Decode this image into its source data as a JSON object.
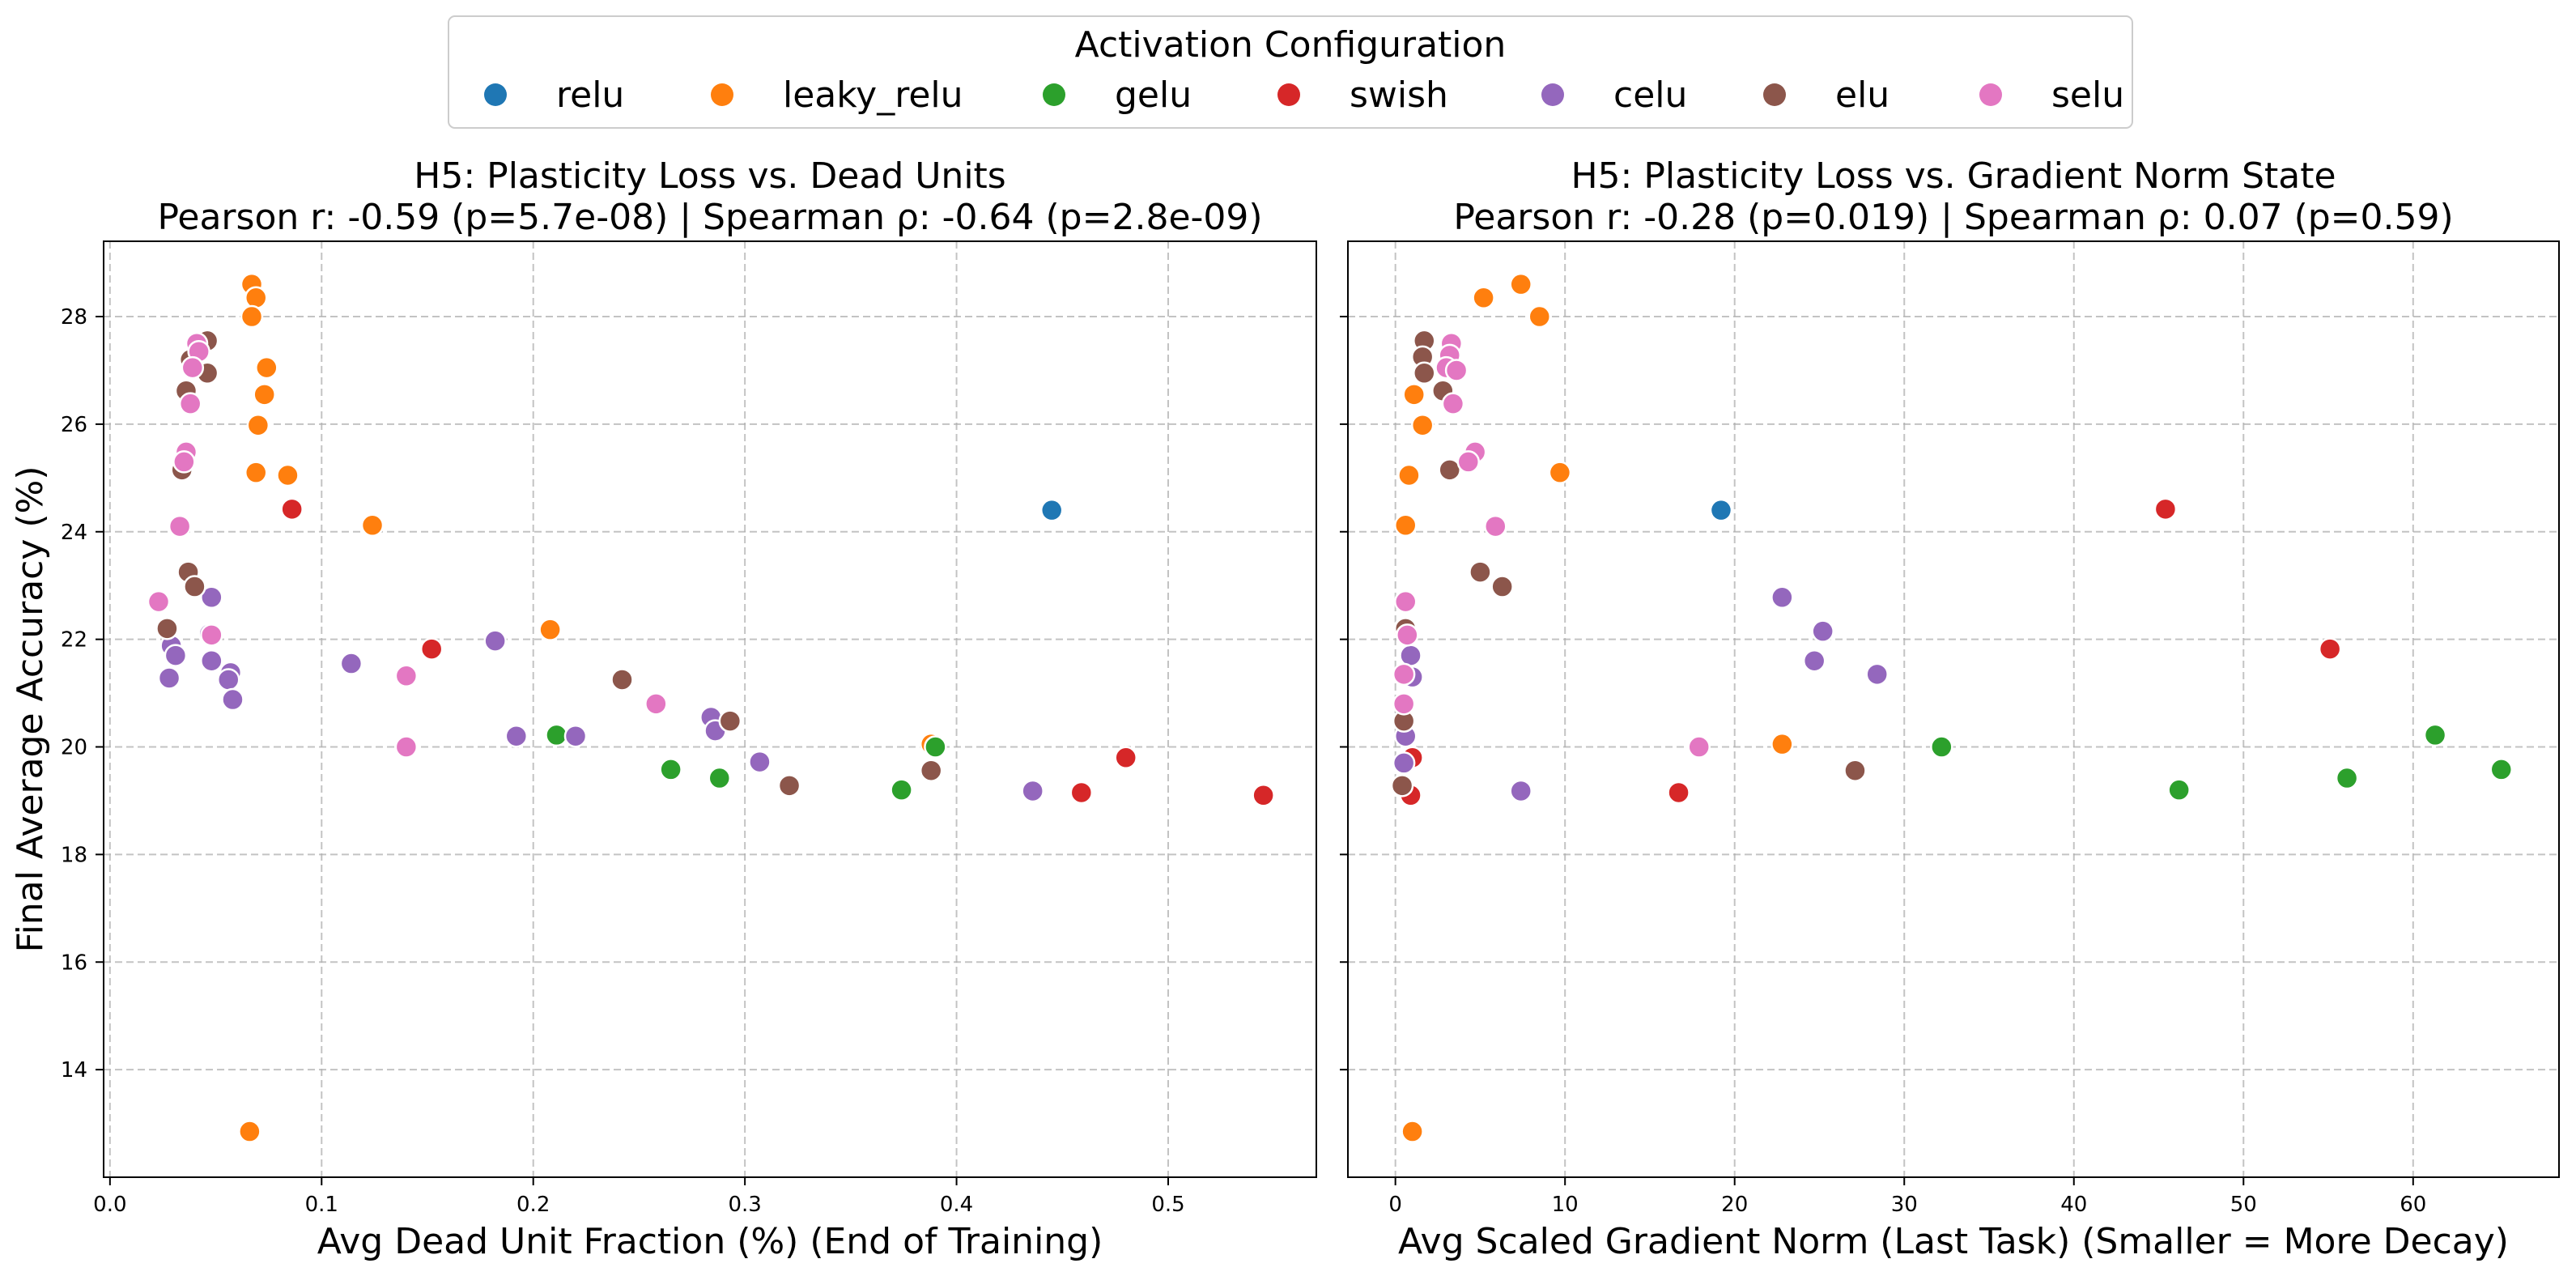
{
  "legend": {
    "title": "Activation Configuration",
    "entries": [
      {
        "name": "relu",
        "color": "#1f77b4"
      },
      {
        "name": "leaky_relu",
        "color": "#ff7f0e"
      },
      {
        "name": "gelu",
        "color": "#2ca02c"
      },
      {
        "name": "swish",
        "color": "#d62728"
      },
      {
        "name": "celu",
        "color": "#9467bd"
      },
      {
        "name": "elu",
        "color": "#8c564b"
      },
      {
        "name": "selu",
        "color": "#e377c2"
      }
    ]
  },
  "chart_data": [
    {
      "type": "scatter",
      "title": "H5: Plasticity Loss vs. Dead Units",
      "subtitle": "Pearson r: -0.59 (p=5.7e-08) | Spearman ρ: -0.64 (p=2.8e-09)",
      "xlabel": "Avg Dead Unit Fraction (%) (End of Training)",
      "ylabel": "Final Average Accuracy (%)",
      "xlim": [
        -0.003,
        0.57
      ],
      "ylim": [
        12.0,
        29.4
      ],
      "xticks": [
        0.0,
        0.1,
        0.2,
        0.3,
        0.4,
        0.5
      ],
      "xtick_labels": [
        "0.0",
        "0.1",
        "0.2",
        "0.3",
        "0.4",
        "0.5"
      ],
      "yticks": [
        14,
        16,
        18,
        20,
        22,
        24,
        26,
        28
      ],
      "ytick_labels": [
        "14",
        "16",
        "18",
        "20",
        "22",
        "24",
        "26",
        "28"
      ],
      "grid": true,
      "series": [
        {
          "name": "relu",
          "points": [
            [
              0.445,
              24.4
            ]
          ]
        },
        {
          "name": "leaky_relu",
          "points": [
            [
              0.067,
              28.6
            ],
            [
              0.069,
              28.35
            ],
            [
              0.067,
              28.0
            ],
            [
              0.074,
              27.05
            ],
            [
              0.073,
              26.55
            ],
            [
              0.07,
              25.98
            ],
            [
              0.069,
              25.1
            ],
            [
              0.084,
              25.05
            ],
            [
              0.124,
              24.12
            ],
            [
              0.208,
              22.18
            ],
            [
              0.388,
              20.05
            ],
            [
              0.066,
              12.85
            ]
          ]
        },
        {
          "name": "gelu",
          "points": [
            [
              0.211,
              20.22
            ],
            [
              0.265,
              19.58
            ],
            [
              0.288,
              19.42
            ],
            [
              0.374,
              19.2
            ],
            [
              0.39,
              20.0
            ]
          ]
        },
        {
          "name": "swish",
          "points": [
            [
              0.086,
              24.42
            ],
            [
              0.152,
              21.82
            ],
            [
              0.459,
              19.15
            ],
            [
              0.48,
              19.8
            ],
            [
              0.545,
              19.1
            ]
          ]
        },
        {
          "name": "celu",
          "points": [
            [
              0.048,
              22.78
            ],
            [
              0.047,
              22.1
            ],
            [
              0.048,
              21.6
            ],
            [
              0.029,
              21.88
            ],
            [
              0.031,
              21.7
            ],
            [
              0.028,
              21.28
            ],
            [
              0.057,
              21.38
            ],
            [
              0.056,
              21.25
            ],
            [
              0.058,
              20.88
            ],
            [
              0.114,
              21.55
            ],
            [
              0.182,
              21.97
            ],
            [
              0.192,
              20.2
            ],
            [
              0.22,
              20.2
            ],
            [
              0.284,
              20.55
            ],
            [
              0.286,
              20.3
            ],
            [
              0.307,
              19.72
            ],
            [
              0.436,
              19.18
            ]
          ]
        },
        {
          "name": "elu",
          "points": [
            [
              0.046,
              27.55
            ],
            [
              0.046,
              26.95
            ],
            [
              0.038,
              27.2
            ],
            [
              0.036,
              26.62
            ],
            [
              0.034,
              25.15
            ],
            [
              0.037,
              23.25
            ],
            [
              0.04,
              22.98
            ],
            [
              0.027,
              22.2
            ],
            [
              0.242,
              21.25
            ],
            [
              0.293,
              20.48
            ],
            [
              0.321,
              19.28
            ],
            [
              0.388,
              19.56
            ]
          ]
        },
        {
          "name": "selu",
          "points": [
            [
              0.041,
              27.5
            ],
            [
              0.042,
              27.35
            ],
            [
              0.039,
              27.05
            ],
            [
              0.038,
              26.38
            ],
            [
              0.036,
              25.48
            ],
            [
              0.035,
              25.3
            ],
            [
              0.033,
              24.1
            ],
            [
              0.023,
              22.7
            ],
            [
              0.048,
              22.08
            ],
            [
              0.14,
              21.32
            ],
            [
              0.14,
              20.0
            ],
            [
              0.258,
              20.8
            ]
          ]
        }
      ]
    },
    {
      "type": "scatter",
      "title": "H5: Plasticity Loss vs. Gradient Norm State",
      "subtitle": "Pearson r: -0.28 (p=0.019) | Spearman ρ: 0.07 (p=0.59)",
      "xlabel": "Avg Scaled Gradient Norm (Last Task) (Smaller = More Decay)",
      "ylabel": "",
      "xlim": [
        -2.8,
        68.6
      ],
      "ylim": [
        12.0,
        29.4
      ],
      "xticks": [
        0,
        10,
        20,
        30,
        40,
        50,
        60
      ],
      "xtick_labels": [
        "0",
        "10",
        "20",
        "30",
        "40",
        "50",
        "60"
      ],
      "yticks": [
        14,
        16,
        18,
        20,
        22,
        24,
        26,
        28
      ],
      "ytick_labels": [],
      "grid": true,
      "series": [
        {
          "name": "relu",
          "points": [
            [
              19.2,
              24.4
            ]
          ]
        },
        {
          "name": "leaky_relu",
          "points": [
            [
              7.4,
              28.6
            ],
            [
              5.2,
              28.35
            ],
            [
              8.5,
              28.0
            ],
            [
              1.1,
              26.55
            ],
            [
              1.6,
              25.98
            ],
            [
              0.8,
              25.05
            ],
            [
              9.7,
              25.1
            ],
            [
              0.6,
              24.12
            ],
            [
              0.5,
              22.18
            ],
            [
              22.8,
              20.05
            ],
            [
              1.0,
              12.85
            ]
          ]
        },
        {
          "name": "gelu",
          "points": [
            [
              61.3,
              20.22
            ],
            [
              65.2,
              19.58
            ],
            [
              56.1,
              19.42
            ],
            [
              46.2,
              19.2
            ],
            [
              32.2,
              20.0
            ]
          ]
        },
        {
          "name": "swish",
          "points": [
            [
              45.4,
              24.42
            ],
            [
              55.1,
              21.82
            ],
            [
              16.7,
              19.15
            ],
            [
              1.0,
              19.8
            ],
            [
              0.9,
              19.1
            ]
          ]
        },
        {
          "name": "celu",
          "points": [
            [
              22.8,
              22.78
            ],
            [
              25.2,
              22.15
            ],
            [
              24.7,
              21.6
            ],
            [
              28.4,
              21.35
            ],
            [
              0.9,
              21.7
            ],
            [
              1.0,
              21.3
            ],
            [
              0.6,
              20.2
            ],
            [
              0.5,
              19.7
            ],
            [
              7.4,
              19.18
            ]
          ]
        },
        {
          "name": "elu",
          "points": [
            [
              1.7,
              27.55
            ],
            [
              1.6,
              27.25
            ],
            [
              1.7,
              26.95
            ],
            [
              2.8,
              26.62
            ],
            [
              3.2,
              25.15
            ],
            [
              5.0,
              23.25
            ],
            [
              6.3,
              22.98
            ],
            [
              0.6,
              22.2
            ],
            [
              0.5,
              20.48
            ],
            [
              0.4,
              19.28
            ],
            [
              27.1,
              19.56
            ]
          ]
        },
        {
          "name": "selu",
          "points": [
            [
              3.3,
              27.5
            ],
            [
              3.2,
              27.28
            ],
            [
              3.0,
              27.05
            ],
            [
              3.6,
              27.0
            ],
            [
              3.4,
              26.38
            ],
            [
              4.7,
              25.48
            ],
            [
              4.3,
              25.3
            ],
            [
              5.9,
              24.1
            ],
            [
              0.6,
              22.7
            ],
            [
              0.7,
              22.08
            ],
            [
              0.5,
              21.35
            ],
            [
              0.5,
              20.8
            ],
            [
              17.9,
              20.0
            ]
          ]
        }
      ]
    }
  ]
}
